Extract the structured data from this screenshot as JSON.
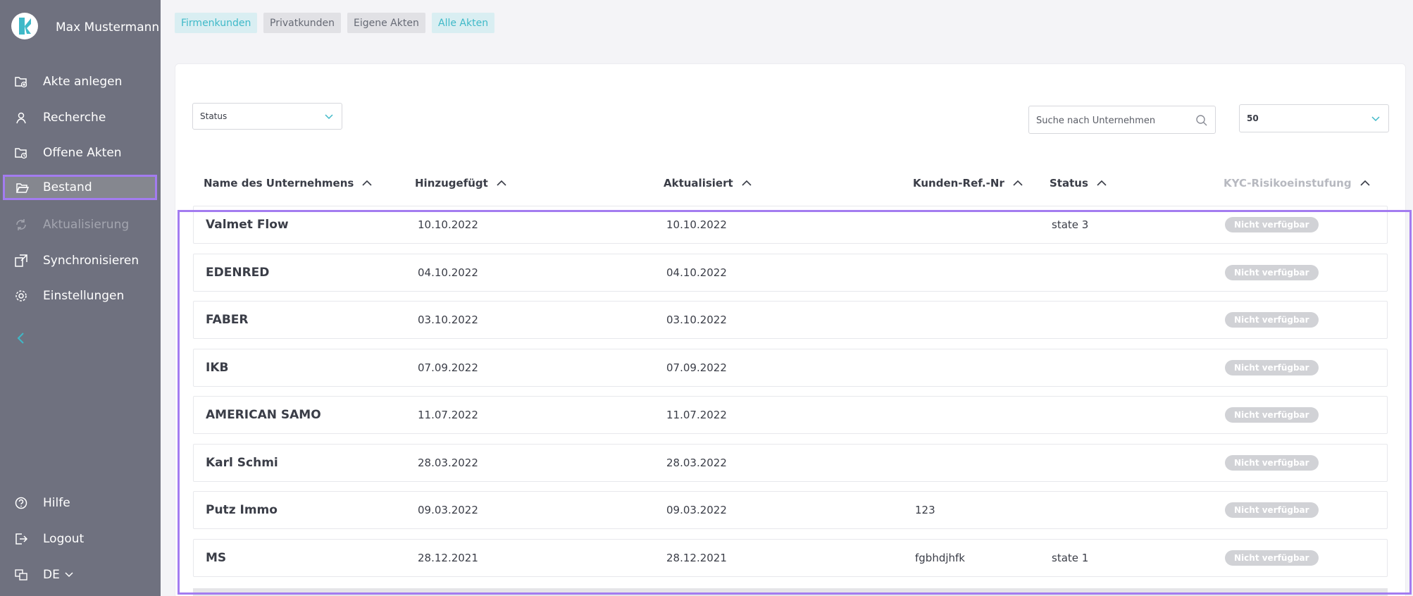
{
  "user": {
    "name": "Max Mustermann"
  },
  "nav": {
    "create": "Akte anlegen",
    "research": "Recherche",
    "open": "Offene Akten",
    "stock": "Bestand",
    "update": "Aktualisierung",
    "sync": "Synchronisieren",
    "settings": "Einstellungen",
    "help": "Hilfe",
    "logout": "Logout",
    "language": "DE"
  },
  "filters": {
    "business": "Firmenkunden",
    "private": "Privatkunden",
    "own": "Eigene Akten",
    "all": "Alle Akten"
  },
  "toolbar": {
    "status_value": "Status",
    "search_placeholder": "Suche nach Unternehmen",
    "page_size": "50"
  },
  "table": {
    "columns": {
      "name": "Name des Unternehmens",
      "added": "Hinzugefügt",
      "updated": "Aktualisiert",
      "ref": "Kunden-Ref.-Nr",
      "status": "Status",
      "kyc": "KYC-Risikoeinstufung"
    },
    "rows": [
      {
        "name": "Valmet Flow",
        "added": "10.10.2022",
        "updated": "10.10.2022",
        "ref": "",
        "status": "state 3",
        "kyc": "Nicht verfügbar"
      },
      {
        "name": "EDENRED",
        "added": "04.10.2022",
        "updated": "04.10.2022",
        "ref": "",
        "status": "",
        "kyc": "Nicht verfügbar"
      },
      {
        "name": "FABER",
        "added": "03.10.2022",
        "updated": "03.10.2022",
        "ref": "",
        "status": "",
        "kyc": "Nicht verfügbar"
      },
      {
        "name": "IKB",
        "added": "07.09.2022",
        "updated": "07.09.2022",
        "ref": "",
        "status": "",
        "kyc": "Nicht verfügbar"
      },
      {
        "name": "AMERICAN SAMO",
        "added": "11.07.2022",
        "updated": "11.07.2022",
        "ref": "",
        "status": "",
        "kyc": "Nicht verfügbar"
      },
      {
        "name": "Karl Schmi",
        "added": "28.03.2022",
        "updated": "28.03.2022",
        "ref": "",
        "status": "",
        "kyc": "Nicht verfügbar"
      },
      {
        "name": "Putz Immo",
        "added": "09.03.2022",
        "updated": "09.03.2022",
        "ref": "123",
        "status": "",
        "kyc": "Nicht verfügbar"
      },
      {
        "name": "MS",
        "added": "28.12.2021",
        "updated": "28.12.2021",
        "ref": "fgbhdjhfk",
        "status": "state 1",
        "kyc": "Nicht verfügbar"
      }
    ]
  },
  "colors": {
    "accent": "#3fb9c8",
    "sidebar": "#6f717f",
    "highlight": "#a37cf0"
  }
}
